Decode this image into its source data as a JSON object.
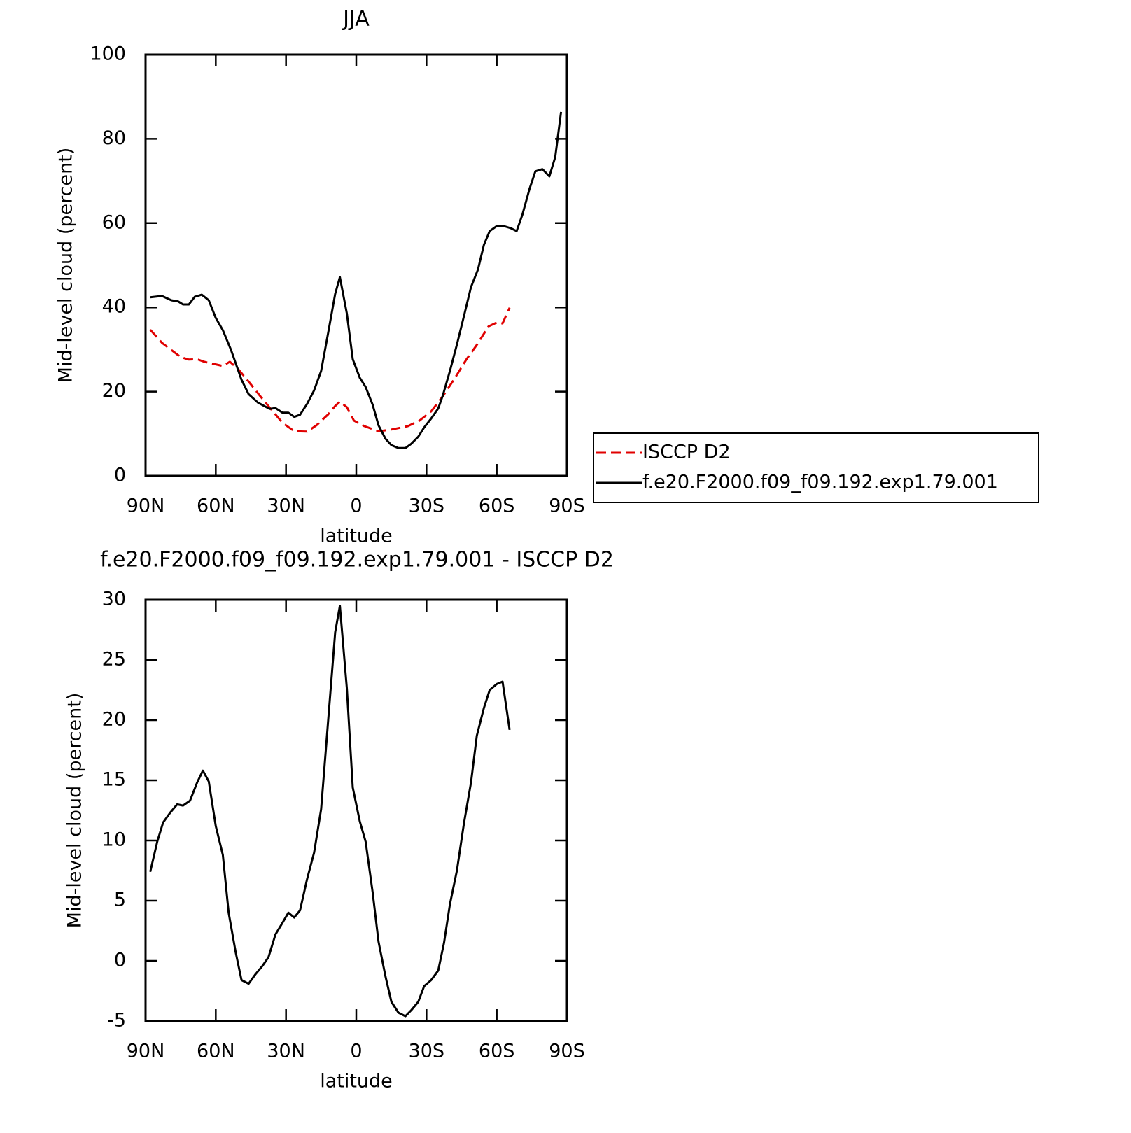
{
  "chart_data": [
    {
      "type": "line",
      "title": "JJA",
      "xlabel": "latitude",
      "ylabel": "Mid-level cloud (percent)",
      "xlim": [
        90,
        -90
      ],
      "ylim": [
        0,
        100
      ],
      "xticks": [
        {
          "value": 90,
          "label": "90N"
        },
        {
          "value": 60,
          "label": "60N"
        },
        {
          "value": 30,
          "label": "30N"
        },
        0,
        {
          "value": -30,
          "label": "30S"
        },
        {
          "value": -60,
          "label": "60S"
        },
        {
          "value": -90,
          "label": "90S"
        }
      ],
      "yticks": [
        0,
        20,
        40,
        60,
        80,
        100
      ],
      "legend": "right",
      "series": [
        {
          "name": "ISCCP D2",
          "color": "#e00000",
          "dashed": true,
          "x": [
            88,
            83,
            79,
            75,
            71.5,
            68,
            65,
            61,
            57,
            54,
            50.5,
            46,
            41,
            36.5,
            31.5,
            26.5,
            21,
            17,
            12,
            9,
            7,
            4,
            1,
            -3.5,
            -9.5,
            -15,
            -22,
            -27,
            -32,
            -37,
            -42,
            -47,
            -51.5,
            -56.5,
            -60,
            -62.5,
            -65.5
          ],
          "values": [
            34.7,
            31.6,
            29.9,
            28.2,
            27.6,
            27.7,
            27.1,
            26.6,
            26.1,
            27.1,
            25.4,
            22.4,
            18.9,
            15.9,
            12.6,
            10.6,
            10.5,
            12,
            14.6,
            16.6,
            17.6,
            16.3,
            13.1,
            11.8,
            10.6,
            11,
            11.8,
            13.1,
            15.3,
            18.9,
            23.1,
            27.6,
            31.1,
            35.5,
            36.4,
            36.2,
            39.9
          ]
        },
        {
          "name": "f.e20.F2000.f09_f09.192.exp1.79.001",
          "color": "#000000",
          "dashed": false,
          "x": [
            88,
            83,
            79,
            76,
            74,
            71.5,
            69,
            66,
            63,
            60,
            57,
            53.5,
            49,
            46,
            42,
            37,
            34.5,
            31.5,
            29,
            26.5,
            24,
            21,
            18,
            15,
            12,
            9,
            7,
            4,
            1.5,
            -1.5,
            -4,
            -7,
            -9.5,
            -12.5,
            -15,
            -18,
            -21,
            -23.5,
            -26.5,
            -29,
            -32,
            -35,
            -37,
            -40,
            -43,
            -46,
            -49,
            -52,
            -54.5,
            -57,
            -60,
            -63,
            -66,
            -68.5,
            -71,
            -74,
            -76.5,
            -79.5,
            -82.5,
            -85,
            -87.5
          ],
          "values": [
            42.4,
            42.7,
            41.7,
            41.4,
            40.7,
            40.7,
            42.5,
            43,
            41.7,
            37.5,
            34.6,
            29.9,
            22.8,
            19.4,
            17.4,
            15.9,
            16.1,
            15,
            15,
            14,
            14.5,
            17.1,
            20.3,
            24.9,
            34,
            43.2,
            47.2,
            38.5,
            27.7,
            23.3,
            21.1,
            16.9,
            12,
            8.8,
            7.3,
            6.6,
            6.6,
            7.6,
            9.3,
            11.5,
            13.6,
            16,
            19.1,
            24.9,
            31.2,
            37.9,
            44.8,
            49,
            54.8,
            58.1,
            59.3,
            59.3,
            58.8,
            58.1,
            62.1,
            68.1,
            72.3,
            72.8,
            71.1,
            75.7,
            86.4
          ]
        }
      ]
    },
    {
      "type": "line",
      "title": "f.e20.F2000.f09_f09.192.exp1.79.001 - ISCCP D2",
      "xlabel": "latitude",
      "ylabel": "Mid-level cloud (percent)",
      "xlim": [
        90,
        -90
      ],
      "ylim": [
        -5,
        30
      ],
      "xticks": [
        {
          "value": 90,
          "label": "90N"
        },
        {
          "value": 60,
          "label": "60N"
        },
        {
          "value": 30,
          "label": "30N"
        },
        0,
        {
          "value": -30,
          "label": "30S"
        },
        {
          "value": -60,
          "label": "60S"
        },
        {
          "value": -90,
          "label": "90S"
        }
      ],
      "yticks": [
        -5,
        0,
        5,
        10,
        15,
        20,
        25,
        30
      ],
      "series": [
        {
          "color": "#000000",
          "dashed": false,
          "x": [
            88,
            85,
            82.5,
            79.5,
            76.5,
            74,
            71,
            68,
            65.5,
            63,
            60,
            57,
            54.5,
            51.5,
            49,
            46,
            43,
            40,
            37.5,
            34.5,
            32,
            29,
            26.5,
            24,
            21,
            18,
            15,
            12,
            9,
            7,
            4,
            1.5,
            -1.5,
            -4,
            -7,
            -9.5,
            -12.5,
            -15,
            -18,
            -21,
            -23.5,
            -26.5,
            -29,
            -32,
            -35,
            -37.5,
            -40,
            -43,
            -46,
            -49,
            -51.5,
            -54.5,
            -57,
            -60,
            -62.5,
            -65.5
          ],
          "values": [
            7.4,
            9.9,
            11.5,
            12.3,
            13,
            12.9,
            13.3,
            14.8,
            15.8,
            14.9,
            11.2,
            8.8,
            4,
            0.7,
            -1.6,
            -1.9,
            -1.1,
            -0.4,
            0.3,
            2.2,
            3,
            4,
            3.6,
            4.2,
            6.8,
            9,
            12.6,
            20,
            27.3,
            29.5,
            22.6,
            14.4,
            11.6,
            9.9,
            5.7,
            1.6,
            -1.3,
            -3.4,
            -4.3,
            -4.6,
            -4.1,
            -3.4,
            -2.1,
            -1.6,
            -0.8,
            1.5,
            4.7,
            7.5,
            11.4,
            14.8,
            18.7,
            21,
            22.5,
            23,
            23.2,
            19.2
          ]
        }
      ]
    }
  ]
}
